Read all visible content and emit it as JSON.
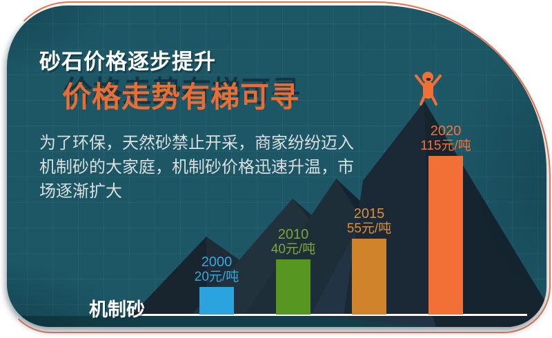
{
  "page": {
    "background": "#ffffff"
  },
  "card": {
    "bg_color": "#1d5766",
    "border_color": "#f0714a",
    "title_small": "砂石价格逐步提升",
    "title_large": "价格走势有梯可寻",
    "description_lines": [
      "为了环保，天然砂禁止开采，商家纷纷迈入",
      "机制砂的大家庭，机制砂价格迅速升温，市",
      "场逐渐扩大"
    ],
    "axis_label": "机制砂"
  },
  "chart_data": {
    "type": "bar",
    "title": "价格走势有梯可寻",
    "subtitle": "砂石价格逐步提升",
    "series_name": "机制砂",
    "categories": [
      "2000",
      "2010",
      "2015",
      "2020"
    ],
    "values": [
      20,
      40,
      55,
      115
    ],
    "unit": "元/吨",
    "value_labels": [
      "20元/吨",
      "40元/吨",
      "55元/吨",
      "115元/吨"
    ],
    "bar_colors": [
      "#2aa3de",
      "#579621",
      "#d0832a",
      "#f26f35"
    ],
    "label_colors": [
      "#3aa7dc",
      "#7fa637",
      "#dd8f3d",
      "#f4743b"
    ],
    "baseline_color": "#ffffff",
    "xlabel": "机制砂",
    "ylabel": "",
    "legend_position": "none",
    "grid": false
  },
  "decor": {
    "climber_icon_color": "#f07038",
    "mountain_tones": [
      "#1d2c37",
      "#18242e",
      "#22323d",
      "#1a2932",
      "#1e2e39",
      "#162431",
      "#223443",
      "#1a2935",
      "#16242f"
    ]
  }
}
